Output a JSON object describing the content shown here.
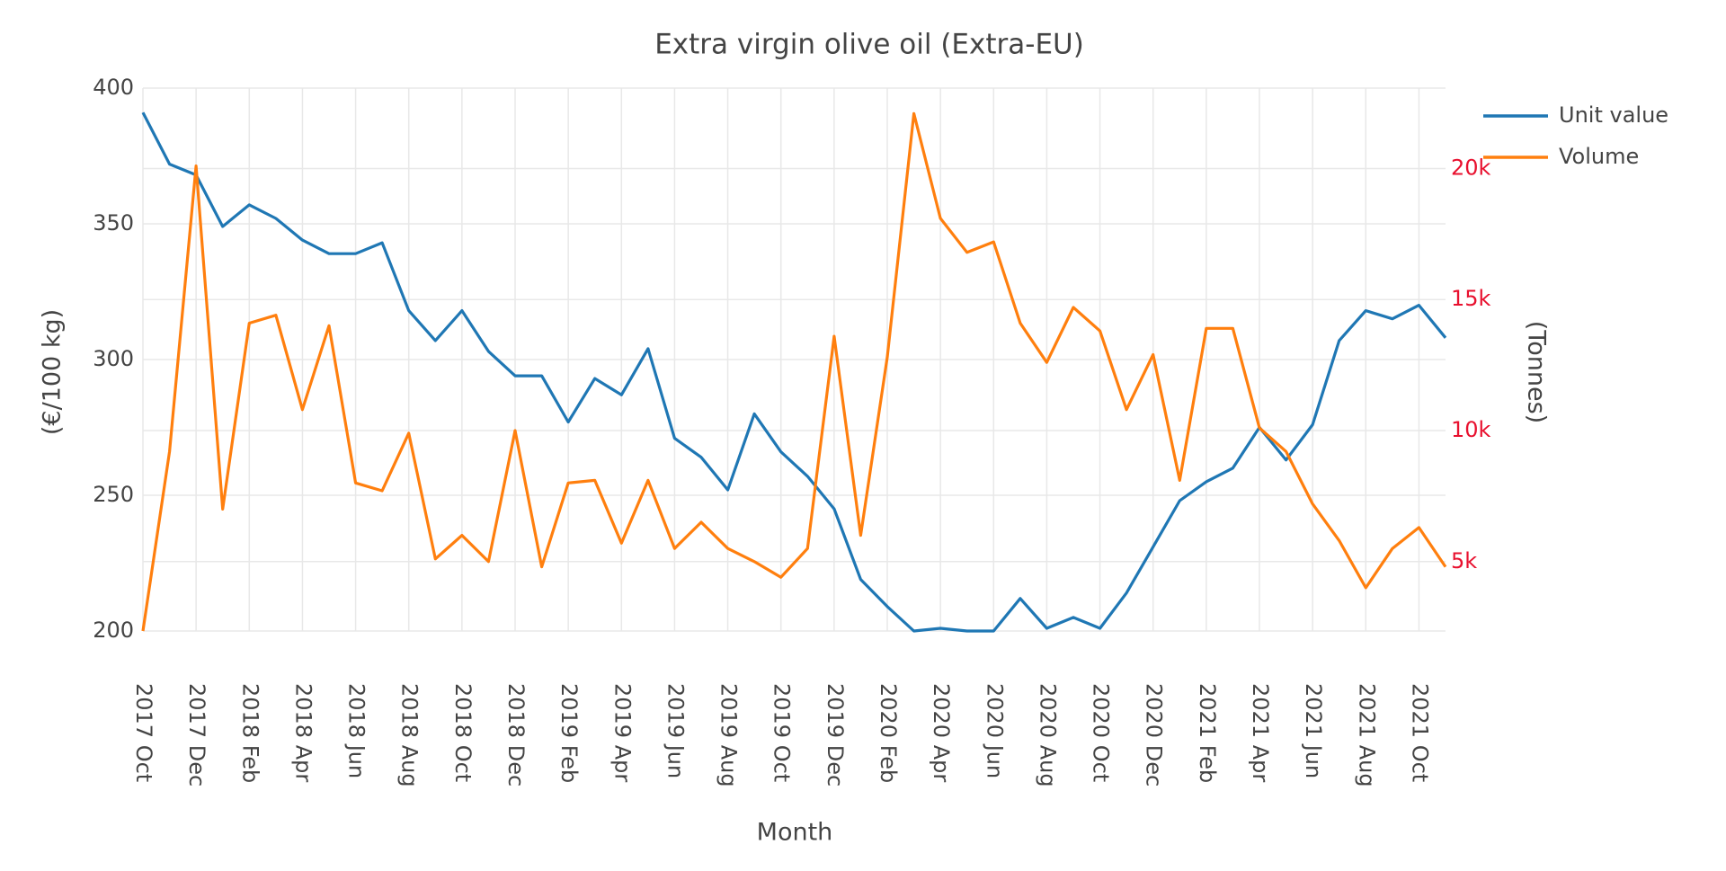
{
  "chart_data": {
    "type": "line",
    "title": "Extra virgin olive oil (Extra-EU)",
    "x_label": "Month",
    "y_label": "(€/100 kg)",
    "y2_label": "(Tonnes)",
    "categories": [
      "2017 Oct",
      null,
      "2017 Dec",
      null,
      "2018 Feb",
      null,
      "2018 Apr",
      null,
      "2018 Jun",
      null,
      "2018 Aug",
      null,
      "2018 Oct",
      null,
      "2018 Dec",
      null,
      "2019 Feb",
      null,
      "2019 Apr",
      null,
      "2019 Jun",
      null,
      "2019 Aug",
      null,
      "2019 Oct",
      null,
      "2019 Dec",
      null,
      "2020 Feb",
      null,
      "2020 Apr",
      null,
      "2020 Jun",
      null,
      "2020 Aug",
      null,
      "2020 Oct",
      null,
      "2020 Dec",
      null,
      "2021 Feb",
      null,
      "2021 Apr",
      null,
      "2021 Jun",
      null,
      "2021 Aug",
      null,
      "2021 Oct",
      null
    ],
    "series": [
      {
        "name": "Unit value",
        "color": "#1f77b4",
        "values": [
          391,
          372,
          368,
          349,
          357,
          352,
          344,
          339,
          339,
          343,
          318,
          307,
          318,
          303,
          294,
          294,
          277,
          293,
          287,
          304,
          271,
          264,
          252,
          280,
          266,
          257,
          245,
          219,
          209,
          200,
          201,
          200,
          200,
          212,
          201,
          205,
          201,
          214,
          231,
          248,
          255,
          260,
          275,
          263,
          276,
          307,
          318,
          315,
          320,
          308
        ]
      },
      {
        "name": "Volume",
        "color": "#ff7f0e",
        "axis": "y2",
        "values": [
          2350,
          9200,
          20100,
          7000,
          14100,
          14400,
          10800,
          14000,
          8000,
          7700,
          9900,
          5100,
          6000,
          5000,
          10000,
          4800,
          8000,
          8100,
          5700,
          8100,
          5500,
          6500,
          5500,
          5000,
          4400,
          5500,
          13600,
          6000,
          12800,
          22100,
          18100,
          16800,
          17200,
          14100,
          12600,
          14700,
          13800,
          10800,
          12900,
          8100,
          13900,
          13900,
          10100,
          9200,
          7200,
          5800,
          4000,
          5500,
          6300,
          4800
        ]
      }
    ],
    "ylim": [
      200,
      400
    ],
    "yticks": [
      200,
      250,
      300,
      350,
      400
    ],
    "y2lim": [
      2350,
      23070
    ],
    "y2ticks": [
      {
        "value": 5000,
        "label": "5k"
      },
      {
        "value": 10000,
        "label": "10k"
      },
      {
        "value": 15000,
        "label": "15k"
      },
      {
        "value": 20000,
        "label": "20k"
      }
    ],
    "y2_tick_color": "#e8102e",
    "grid": true,
    "legend": "top-right"
  }
}
